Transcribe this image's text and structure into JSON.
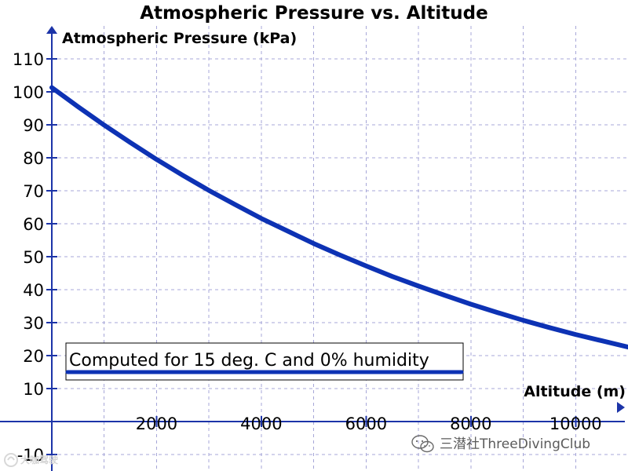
{
  "chart_data": {
    "type": "line",
    "title": "Atmospheric Pressure vs. Altitude",
    "xlabel": "Altitude (m)",
    "ylabel": "Atmospheric Pressure (kPa)",
    "xlim": [
      0,
      11000
    ],
    "ylim": [
      -15,
      120
    ],
    "x_ticks": [
      2000,
      4000,
      6000,
      8000,
      10000
    ],
    "y_ticks": [
      -10,
      10,
      20,
      30,
      40,
      50,
      60,
      70,
      80,
      90,
      100,
      110
    ],
    "grid": true,
    "series": [
      {
        "x": [
          0,
          500,
          1000,
          1500,
          2000,
          2500,
          3000,
          3500,
          4000,
          4500,
          5000,
          5500,
          6000,
          6500,
          7000,
          7500,
          8000,
          8500,
          9000,
          9500,
          10000,
          10500,
          11000
        ],
        "values": [
          101.3,
          95.5,
          89.9,
          84.6,
          79.5,
          74.7,
          70.1,
          65.8,
          61.6,
          57.8,
          54.0,
          50.5,
          47.2,
          44.0,
          41.1,
          38.3,
          35.6,
          33.1,
          30.7,
          28.5,
          26.4,
          24.5,
          22.6
        ],
        "color": "#0d32b4"
      }
    ],
    "annotation": {
      "text": "Computed for 15 deg. C and 0% humidity",
      "position": "lower-left"
    }
  },
  "watermarks": {
    "main_text": "三潜社ThreeDivingClub",
    "corner_text": "大咖驾驶",
    "color": "#5b5b5b"
  }
}
